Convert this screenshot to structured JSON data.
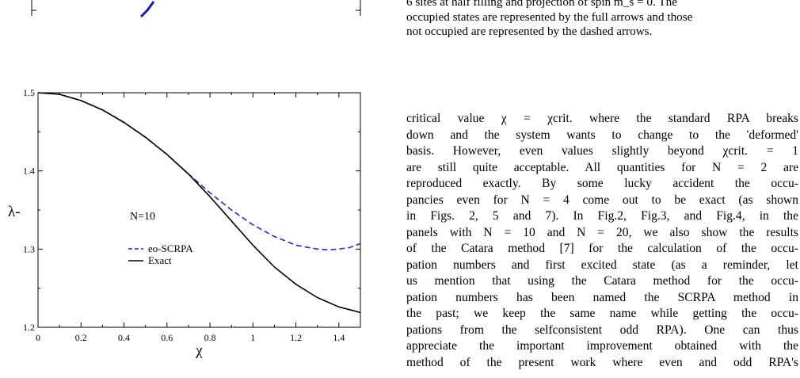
{
  "caption_lines": [
    "6 sites at half filling and projection of spin m_s = 0. The",
    "occupied states are represented by the full arrows and those",
    "not occupied are represented by the dashed arrows."
  ],
  "body_lines": [
    "critical value χ = χcrit. where the standard RPA breaks",
    "down and the system wants to change to the 'deformed'",
    "basis. However, even values slightly beyond χcrit. = 1",
    "are still quite acceptable. All quantities for N = 2 are",
    "reproduced exactly. By some lucky accident the occu-",
    "pancies even for N = 4 come out to be exact (as shown",
    "in Figs. 2, 5 and 7). In Fig.2, Fig.3, and Fig.4, in the",
    "panels with N = 10 and N = 20, we also show the results",
    "of the Catara method [7] for the calculation of the occu-",
    "pation numbers and first excited state (as a reminder, let",
    "us mention that using the Catara method for the occu-",
    "pation numbers has been named the SCRPA method in",
    "the past; we keep the same name while getting the occu-",
    "pations from the selfconsistent odd RPA). One can thus",
    "appreciate the important improvement obtained with the",
    "method of the present work where even and odd RPA's"
  ],
  "chart_data": {
    "type": "line",
    "xlabel": "χ",
    "ylabel": "λ-",
    "xlim": [
      0,
      1.5
    ],
    "ylim": [
      1.2,
      1.5
    ],
    "xticks": [
      "0",
      "0.2",
      "0.4",
      "0.6",
      "0.8",
      "1",
      "1.2",
      "1.4"
    ],
    "yticks": [
      "1.2",
      "1.3",
      "1.4",
      "1.5"
    ],
    "annotation": "N=10",
    "legend_position": "center-left",
    "series": [
      {
        "name": "eo-SCRPA",
        "style": "dashed",
        "color": "#1f2ecc",
        "x": [
          0,
          0.1,
          0.2,
          0.3,
          0.4,
          0.5,
          0.6,
          0.7,
          0.8,
          0.9,
          1.0,
          1.1,
          1.2,
          1.3,
          1.35,
          1.4,
          1.45,
          1.5
        ],
        "y": [
          1.5,
          1.498,
          1.49,
          1.478,
          1.462,
          1.443,
          1.421,
          1.396,
          1.372,
          1.35,
          1.331,
          1.316,
          1.305,
          1.3,
          1.299,
          1.3,
          1.302,
          1.307
        ]
      },
      {
        "name": "Exact",
        "style": "solid",
        "color": "#000000",
        "x": [
          0,
          0.1,
          0.2,
          0.3,
          0.4,
          0.5,
          0.6,
          0.7,
          0.8,
          0.9,
          1.0,
          1.1,
          1.2,
          1.3,
          1.4,
          1.5
        ],
        "y": [
          1.5,
          1.498,
          1.49,
          1.478,
          1.462,
          1.443,
          1.421,
          1.396,
          1.367,
          1.336,
          1.305,
          1.277,
          1.255,
          1.238,
          1.226,
          1.219
        ]
      }
    ]
  }
}
